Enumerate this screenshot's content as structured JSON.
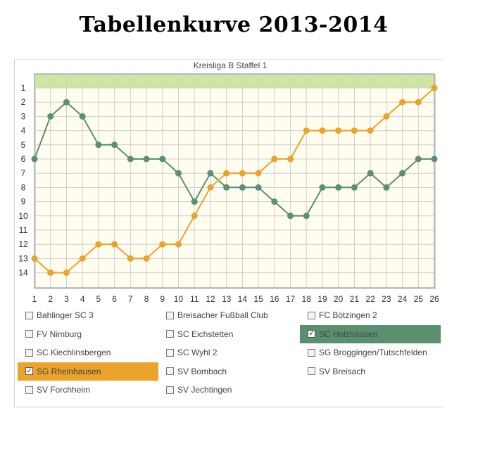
{
  "page_title": "Tabellenkurve 2013-2014",
  "chart_data": {
    "type": "line",
    "title": "Kreisliga B Staffel 1",
    "xlabel": "",
    "ylabel": "",
    "x": [
      1,
      2,
      3,
      4,
      5,
      6,
      7,
      8,
      9,
      10,
      11,
      12,
      13,
      14,
      15,
      16,
      17,
      18,
      19,
      20,
      21,
      22,
      23,
      24,
      25,
      26
    ],
    "ylim": [
      1,
      14
    ],
    "y_inverted": true,
    "yticks": [
      1,
      2,
      3,
      4,
      5,
      6,
      7,
      8,
      9,
      10,
      11,
      12,
      13,
      14
    ],
    "grid": true,
    "highlight_band": {
      "from": 1,
      "to": 0,
      "color": "#cfe6a3"
    },
    "plot_background": "#fffdf0",
    "series": [
      {
        "name": "SC Holzhausen",
        "color": "#5a8f70",
        "values": [
          6,
          3,
          2,
          3,
          5,
          5,
          6,
          6,
          6,
          7,
          9,
          7,
          8,
          8,
          8,
          9,
          10,
          10,
          8,
          8,
          8,
          7,
          8,
          7,
          6,
          6
        ]
      },
      {
        "name": "SG Rheinhausen",
        "color": "#eaa32c",
        "values": [
          13,
          14,
          14,
          13,
          12,
          12,
          13,
          13,
          12,
          12,
          10,
          8,
          7,
          7,
          7,
          6,
          6,
          4,
          4,
          4,
          4,
          4,
          3,
          2,
          2,
          1
        ]
      }
    ]
  },
  "legend": {
    "items": [
      {
        "label": "Bahlinger SC 3",
        "checked": false,
        "color": ""
      },
      {
        "label": "Breisacher Fußball Club",
        "checked": false,
        "color": ""
      },
      {
        "label": "FC Bötzingen 2",
        "checked": false,
        "color": ""
      },
      {
        "label": "FV Nimburg",
        "checked": false,
        "color": ""
      },
      {
        "label": "SC Eichstetten",
        "checked": false,
        "color": ""
      },
      {
        "label": "SC Holzhausen",
        "checked": true,
        "color": "#5a8f70"
      },
      {
        "label": "SC Kiechlinsbergen",
        "checked": false,
        "color": ""
      },
      {
        "label": "SC Wyhl 2",
        "checked": false,
        "color": ""
      },
      {
        "label": "SG Broggingen/Tutschfelden",
        "checked": false,
        "color": ""
      },
      {
        "label": "SG Rheinhausen",
        "checked": true,
        "color": "#eaa32c"
      },
      {
        "label": "SV Bombach",
        "checked": false,
        "color": ""
      },
      {
        "label": "SV Breisach",
        "checked": false,
        "color": ""
      },
      {
        "label": "SV Forchheim",
        "checked": false,
        "color": ""
      },
      {
        "label": "SV Jechtingen",
        "checked": false,
        "color": ""
      }
    ]
  }
}
